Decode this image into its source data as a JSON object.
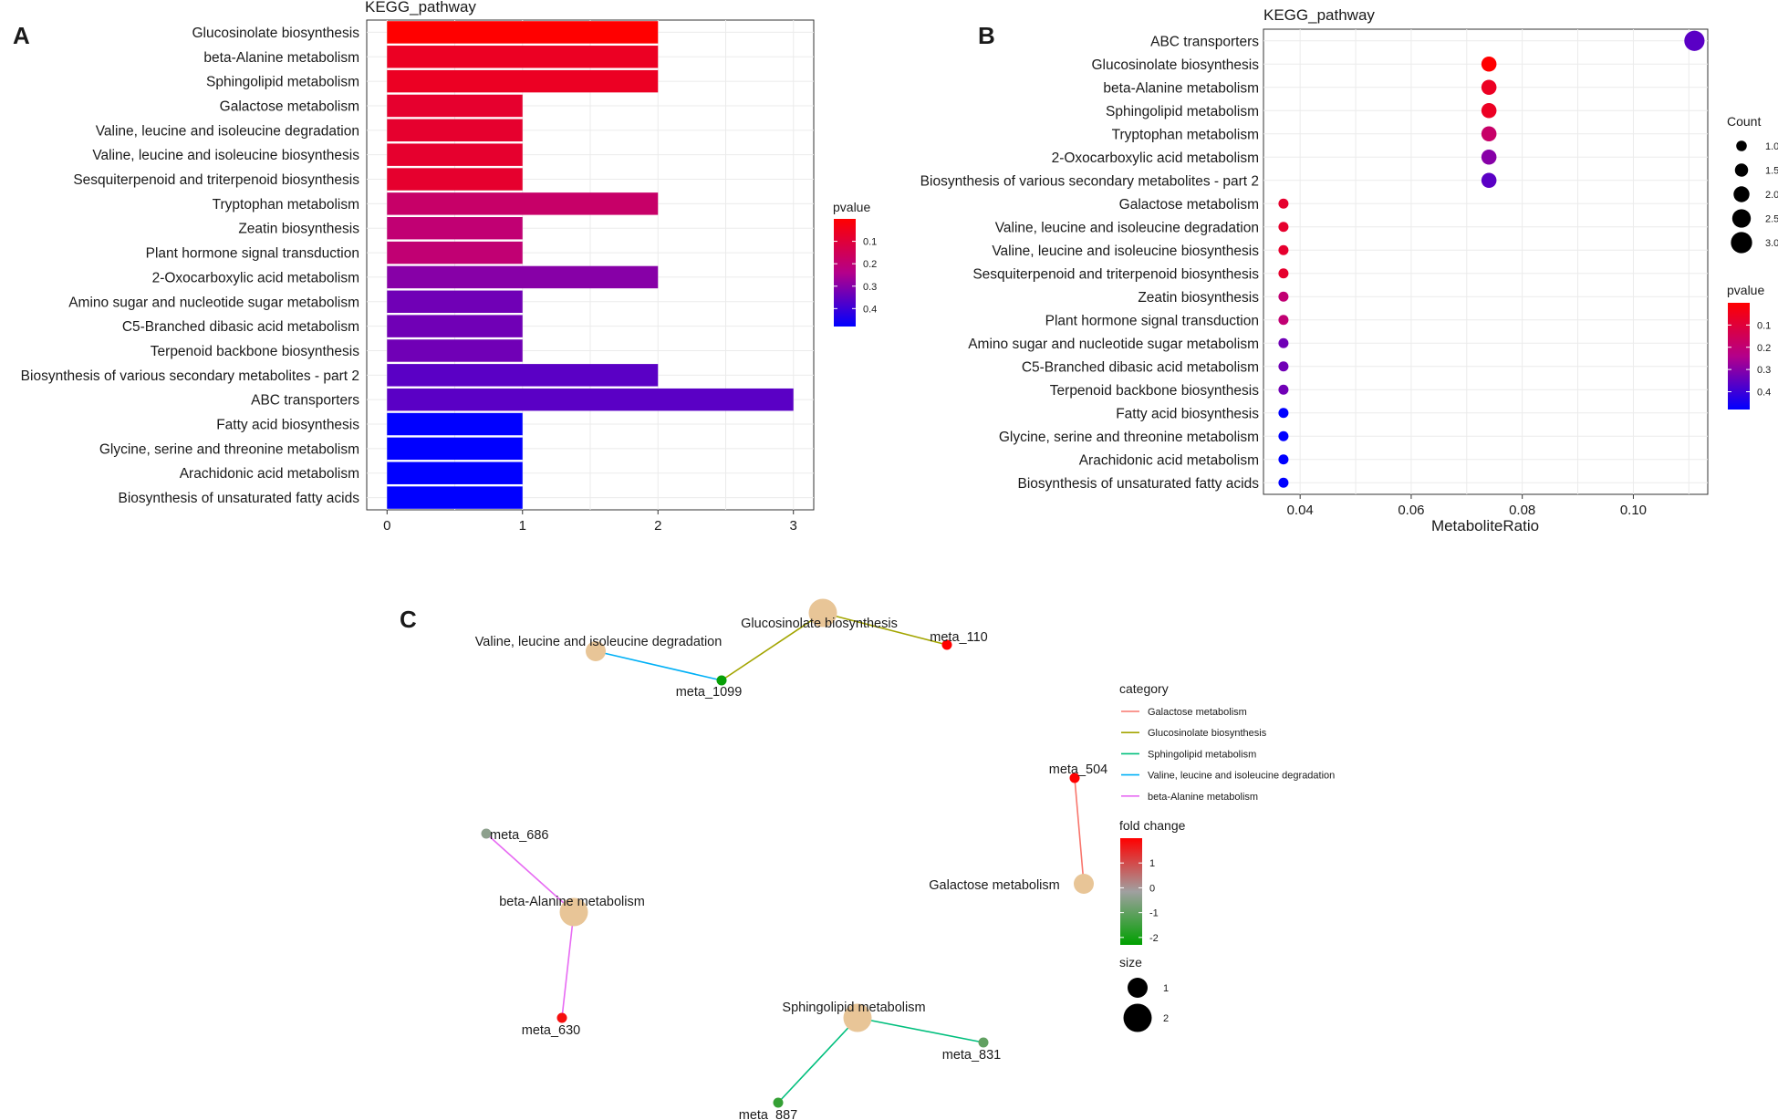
{
  "panel_labels": {
    "a": "A",
    "b": "B",
    "c": "C"
  },
  "chart_data": [
    {
      "panel": "A",
      "type": "bar",
      "orientation": "horizontal",
      "title": "KEGG_pathway",
      "xlabel": "",
      "ylabel": "",
      "xlim": [
        -0.15,
        3.15
      ],
      "xticks": [
        0,
        1,
        2,
        3
      ],
      "grid": true,
      "categories": [
        "Glucosinolate biosynthesis",
        "beta-Alanine metabolism",
        "Sphingolipid metabolism",
        "Galactose metabolism",
        "Valine, leucine and isoleucine degradation",
        "Valine, leucine and isoleucine biosynthesis",
        "Sesquiterpenoid and triterpenoid biosynthesis",
        "Tryptophan metabolism",
        "Zeatin biosynthesis",
        "Plant hormone signal transduction",
        "2-Oxocarboxylic acid metabolism",
        "Amino sugar and nucleotide sugar metabolism",
        "C5-Branched dibasic acid metabolism",
        "Terpenoid backbone biosynthesis",
        "Biosynthesis of various secondary metabolites - part 2",
        "ABC transporters",
        "Fatty acid biosynthesis",
        "Glycine, serine and threonine metabolism",
        "Arachidonic acid metabolism",
        "Biosynthesis of unsaturated fatty acids"
      ],
      "values": [
        2,
        2,
        2,
        1,
        1,
        1,
        1,
        2,
        1,
        1,
        2,
        1,
        1,
        1,
        2,
        3,
        1,
        1,
        1,
        1
      ],
      "pvalue": [
        0.0,
        0.06,
        0.06,
        0.08,
        0.08,
        0.08,
        0.08,
        0.18,
        0.2,
        0.2,
        0.3,
        0.33,
        0.33,
        0.33,
        0.36,
        0.36,
        0.48,
        0.48,
        0.48,
        0.48
      ],
      "legend": {
        "title": "pvalue",
        "ticks": [
          "0.1",
          "0.2",
          "0.3",
          "0.4"
        ],
        "tick_values": [
          0.1,
          0.2,
          0.3,
          0.4
        ],
        "range": [
          0.0,
          0.48
        ],
        "position": "right"
      }
    },
    {
      "panel": "B",
      "type": "scatter",
      "title": "KEGG_pathway",
      "xlabel": "MetaboliteRatio",
      "ylabel": "",
      "xlim": [
        0.0334,
        0.1134
      ],
      "xticks": [
        0.04,
        0.06,
        0.08,
        0.1
      ],
      "xtick_labels": [
        "0.04",
        "0.06",
        "0.08",
        "0.10"
      ],
      "grid": true,
      "categories": [
        "ABC transporters",
        "Glucosinolate biosynthesis",
        "beta-Alanine metabolism",
        "Sphingolipid metabolism",
        "Tryptophan metabolism",
        "2-Oxocarboxylic acid metabolism",
        "Biosynthesis of various secondary metabolites - part 2",
        "Galactose metabolism",
        "Valine, leucine and isoleucine degradation",
        "Valine, leucine and isoleucine biosynthesis",
        "Sesquiterpenoid and triterpenoid biosynthesis",
        "Zeatin biosynthesis",
        "Plant hormone signal transduction",
        "Amino sugar and nucleotide sugar metabolism",
        "C5-Branched dibasic acid metabolism",
        "Terpenoid backbone biosynthesis",
        "Fatty acid biosynthesis",
        "Glycine, serine and threonine metabolism",
        "Arachidonic acid metabolism",
        "Biosynthesis of unsaturated fatty acids"
      ],
      "x": [
        0.111,
        0.074,
        0.074,
        0.074,
        0.074,
        0.074,
        0.074,
        0.037,
        0.037,
        0.037,
        0.037,
        0.037,
        0.037,
        0.037,
        0.037,
        0.037,
        0.037,
        0.037,
        0.037,
        0.037
      ],
      "count": [
        3,
        2,
        2,
        2,
        2,
        2,
        2,
        1,
        1,
        1,
        1,
        1,
        1,
        1,
        1,
        1,
        1,
        1,
        1,
        1
      ],
      "pvalue": [
        0.36,
        0.0,
        0.06,
        0.06,
        0.18,
        0.3,
        0.36,
        0.08,
        0.08,
        0.08,
        0.08,
        0.2,
        0.2,
        0.33,
        0.33,
        0.33,
        0.48,
        0.48,
        0.48,
        0.48
      ],
      "legend_count": {
        "title": "Count",
        "labels": [
          "1.0",
          "1.5",
          "2.0",
          "2.5",
          "3.0"
        ],
        "values": [
          1.0,
          1.5,
          2.0,
          2.5,
          3.0
        ]
      },
      "legend_pvalue": {
        "title": "pvalue",
        "ticks": [
          "0.1",
          "0.2",
          "0.3",
          "0.4"
        ],
        "tick_values": [
          0.1,
          0.2,
          0.3,
          0.4
        ],
        "range": [
          0.0,
          0.48
        ]
      }
    },
    {
      "panel": "C",
      "type": "network",
      "pathway_nodes": [
        {
          "id": "glucosinolate",
          "label": "Glucosinolate biosynthesis",
          "size": 2
        },
        {
          "id": "valine_deg",
          "label": "Valine, leucine and isoleucine degradation",
          "size": 1
        },
        {
          "id": "galactose",
          "label": "Galactose metabolism",
          "size": 1
        },
        {
          "id": "beta_alanine",
          "label": "beta-Alanine metabolism",
          "size": 2
        },
        {
          "id": "sphingolipid",
          "label": "Sphingolipid metabolism",
          "size": 2
        }
      ],
      "metabolite_nodes": [
        {
          "id": "meta_110",
          "label": "meta_110",
          "fold_change": 2.0
        },
        {
          "id": "meta_1099",
          "label": "meta_1099",
          "fold_change": -2.2
        },
        {
          "id": "meta_504",
          "label": "meta_504",
          "fold_change": 2.0
        },
        {
          "id": "meta_686",
          "label": "meta_686",
          "fold_change": -0.4
        },
        {
          "id": "meta_630",
          "label": "meta_630",
          "fold_change": 1.8
        },
        {
          "id": "meta_831",
          "label": "meta_831",
          "fold_change": -1.0
        },
        {
          "id": "meta_887",
          "label": "meta_887",
          "fold_change": -1.6
        }
      ],
      "edges": [
        {
          "source": "glucosinolate",
          "target": "meta_110",
          "category": "Glucosinolate biosynthesis"
        },
        {
          "source": "glucosinolate",
          "target": "meta_1099",
          "category": "Glucosinolate biosynthesis"
        },
        {
          "source": "valine_deg",
          "target": "meta_1099",
          "category": "Valine, leucine and isoleucine degradation"
        },
        {
          "source": "galactose",
          "target": "meta_504",
          "category": "Galactose metabolism"
        },
        {
          "source": "beta_alanine",
          "target": "meta_686",
          "category": "beta-Alanine metabolism"
        },
        {
          "source": "beta_alanine",
          "target": "meta_630",
          "category": "beta-Alanine metabolism"
        },
        {
          "source": "sphingolipid",
          "target": "meta_831",
          "category": "Sphingolipid metabolism"
        },
        {
          "source": "sphingolipid",
          "target": "meta_887",
          "category": "Sphingolipid metabolism"
        }
      ],
      "legend_category": {
        "title": "category",
        "items": [
          {
            "label": "Galactose metabolism",
            "color": "#f8766d"
          },
          {
            "label": "Glucosinolate biosynthesis",
            "color": "#a3a500"
          },
          {
            "label": "Sphingolipid metabolism",
            "color": "#00bf7d"
          },
          {
            "label": "Valine, leucine and isoleucine degradation",
            "color": "#00b0f6"
          },
          {
            "label": "beta-Alanine metabolism",
            "color": "#e76bf3"
          }
        ]
      },
      "legend_fold_change": {
        "title": "fold change",
        "ticks": [
          "1",
          "0",
          "-1",
          "-2"
        ],
        "tick_values": [
          1,
          0,
          -1,
          -2
        ],
        "range": [
          -2.3,
          2.0
        ]
      },
      "legend_size": {
        "title": "size",
        "labels": [
          "1",
          "2"
        ],
        "values": [
          1,
          2
        ]
      }
    }
  ],
  "colors": {
    "pvalue_low": "#ff0000",
    "pvalue_high": "#0000ff",
    "fold_high": "#ff0000",
    "fold_mid": "#a0a0a0",
    "fold_low": "#00a000",
    "pathway_node": "#e8c597",
    "grid": "#ebebeb",
    "panel_border": "#333333"
  }
}
